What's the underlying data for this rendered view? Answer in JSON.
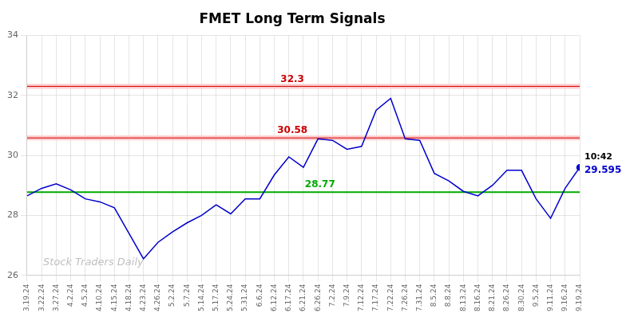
{
  "chart_data": {
    "type": "line",
    "title": "FMET Long Term Signals",
    "categories": [
      "3.19.24",
      "3.22.24",
      "3.27.24",
      "4.2.24",
      "4.5.24",
      "4.10.24",
      "4.15.24",
      "4.18.24",
      "4.23.24",
      "4.26.24",
      "5.2.24",
      "5.7.24",
      "5.14.24",
      "5.17.24",
      "5.24.24",
      "5.31.24",
      "6.6.24",
      "6.12.24",
      "6.17.24",
      "6.21.24",
      "6.26.24",
      "7.2.24",
      "7.9.24",
      "7.12.24",
      "7.17.24",
      "7.22.24",
      "7.26.24",
      "7.31.24",
      "8.5.24",
      "8.8.24",
      "8.13.24",
      "8.16.24",
      "8.21.24",
      "8.26.24",
      "8.30.24",
      "9.5.24",
      "9.11.24",
      "9.16.24",
      "9.19.24"
    ],
    "values": [
      28.65,
      28.9,
      29.05,
      28.85,
      28.55,
      28.45,
      28.25,
      27.4,
      26.55,
      27.1,
      27.45,
      27.75,
      28.0,
      28.35,
      28.05,
      28.55,
      28.55,
      29.35,
      29.95,
      29.6,
      30.55,
      30.5,
      30.2,
      30.3,
      31.5,
      31.9,
      30.55,
      30.5,
      29.4,
      29.15,
      28.8,
      28.65,
      29.0,
      29.5,
      29.5,
      28.55,
      27.9,
      28.9,
      29.595
    ],
    "color": "#0000cc",
    "ylim": [
      26,
      34
    ],
    "yticks": [
      26,
      28,
      30,
      32,
      34
    ],
    "grid": true,
    "reference_lines": [
      {
        "value": 32.3,
        "label": "32.3",
        "color": "#cc0000",
        "band_color": "#ffcccc"
      },
      {
        "value": 30.58,
        "label": "30.58",
        "color": "#cc0000",
        "band_color": "#ffcccc"
      },
      {
        "value": 28.77,
        "label": "28.77",
        "color": "#00aa00"
      }
    ],
    "last_point": {
      "time": "10:42",
      "label": "29.595"
    },
    "watermark": "Stock Traders Daily"
  }
}
